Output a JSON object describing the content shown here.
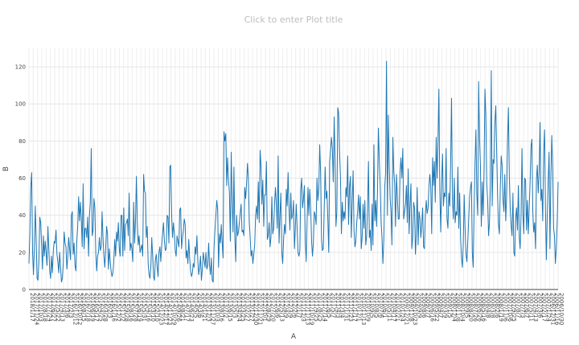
{
  "header": {
    "title_placeholder": "Click to enter Plot title"
  },
  "chart_data": {
    "type": "line",
    "title": "",
    "xlabel": "A",
    "ylabel": "B",
    "ylim": [
      0,
      130
    ],
    "yticks": [
      0,
      20,
      40,
      60,
      80,
      100,
      120
    ],
    "x_axis_reversed": true,
    "grid": true,
    "legend": "none",
    "line_color": "#1f77b4",
    "x_tick_labels": [
      "2018/1/17",
      "2017/11/24",
      "2017/10/3",
      "2017/8/18",
      "2017/7/24",
      "2017/6/27",
      "2017/5/22",
      "2017/4/13",
      "2017/3/6",
      "2017/2/3",
      "2016/12/12",
      "2016/10/12",
      "2016/8/15",
      "2016/7/18",
      "2016/6/19",
      "2016/5/17",
      "2016/4/25",
      "2016/3/28",
      "2016/2/3",
      "2016/1/16",
      "2015/12/2",
      "2015/11/2",
      "2015/9/28",
      "2015/8/16",
      "2015/7/28",
      "2015/6/19",
      "2015/5/31",
      "2015/4/16",
      "2015/3/10",
      "2015/2/10",
      "2014/12/23",
      "2014/12/17",
      "2014/11/23",
      "2014/10/29",
      "2014/9/26",
      "2014/8/21",
      "2014/7/17",
      "2014/6/23",
      "2014/5/5",
      "2014/3/6",
      "2014/1/21",
      "2013/12/3",
      "2013/11/27",
      "2013/10/3",
      "2013/8/16",
      "2013/7/2",
      "2013/6/15",
      "2013/5/3",
      "2013/4/24",
      "2013/3/25",
      "2013/2/27",
      "2013/1/27",
      "2012/12/30",
      "2012/11/21",
      "2012/10/1",
      "2012/8/29",
      "2012/7/20",
      "2012/6/6",
      "2012/5/13",
      "2012/4/9",
      "2012/3/9",
      "2012/2/6",
      "2012/1/7",
      "2011/12/3",
      "2011/11/13",
      "2011/10/19",
      "2011/9/25",
      "2011/8/25",
      "2011/7/14",
      "2011/6/5",
      "2011/5/7",
      "2011/4/3",
      "2011/3/4",
      "2011/1/31",
      "2011/1/23",
      "2011/1/17",
      "2010/12/1",
      "2010/11/13",
      "2010/10/9",
      "2010/9/5",
      "2010/8/5",
      "2010/7/6",
      "2010/6/1",
      "2010/5/11",
      "2010/4/17",
      "2010/2/21",
      "2010/1/24",
      "2009/12/21",
      "2009/11/8",
      "2009/10/23",
      "2009/9/9",
      "2009/8/6",
      "2009/7/7",
      "2009/6/16",
      "2009/5/22",
      "2009/4/7",
      "2009/3/9",
      "2009/1/5",
      "2008/12/4",
      "2008/11/8",
      "2008/10/4",
      "2008/9/5",
      "2008/8/20",
      "2008/7/26",
      "2008/6/26",
      "2008/5/16",
      "2008/4/8",
      "2008/3/8",
      "2008/2/6",
      "2008/1/19",
      "2007/11/6",
      "2007/10/6",
      "2007/9/25",
      "2007/8/7",
      "2007/7/3",
      "2007/6/7",
      "2007/5/11",
      "2007/4/13",
      "2007/3/6",
      "2007/2/17",
      "2007/1/24",
      "2006/12/31",
      "2006/11/16",
      "2006/10/30"
    ],
    "x_tick_labels_note_free": true,
    "series": [
      {
        "x_start": "2018/1/17",
        "x_end": "2006/10/30",
        "values": [
          14,
          30,
          55,
          63,
          20,
          8,
          22,
          45,
          27,
          6,
          5,
          15,
          39,
          36,
          24,
          11,
          29,
          18,
          26,
          20,
          13,
          34,
          22,
          10,
          6,
          18,
          9,
          21,
          26,
          25,
          32,
          19,
          15,
          9,
          20,
          12,
          4,
          6,
          14,
          31,
          25,
          23,
          11,
          18,
          28,
          22,
          16,
          40,
          42,
          19,
          25,
          13,
          10,
          26,
          34,
          50,
          37,
          47,
          38,
          23,
          57,
          22,
          33,
          33,
          28,
          39,
          18,
          40,
          47,
          76,
          29,
          32,
          49,
          44,
          20,
          10,
          18,
          20,
          28,
          21,
          23,
          42,
          28,
          18,
          12,
          22,
          34,
          30,
          11,
          22,
          15,
          10,
          7,
          9,
          16,
          27,
          18,
          31,
          26,
          36,
          22,
          18,
          40,
          40,
          18,
          44,
          21,
          35,
          36,
          38,
          29,
          52,
          21,
          25,
          22,
          15,
          47,
          25,
          37,
          61,
          36,
          24,
          29,
          20,
          22,
          24,
          18,
          62,
          53,
          52,
          28,
          34,
          14,
          8,
          6,
          12,
          28,
          18,
          7,
          5,
          16,
          19,
          12,
          7,
          20,
          23,
          15,
          24,
          30,
          36,
          26,
          21,
          22,
          40,
          39,
          25,
          66,
          67,
          41,
          28,
          36,
          30,
          21,
          18,
          29,
          26,
          23,
          43,
          44,
          22,
          28,
          32,
          38,
          35,
          17,
          21,
          14,
          27,
          17,
          10,
          7,
          9,
          14,
          12,
          23,
          19,
          29,
          16,
          8,
          12,
          18,
          5,
          11,
          20,
          16,
          12,
          20,
          11,
          13,
          25,
          13,
          8,
          17,
          5,
          4,
          23,
          32,
          40,
          48,
          43,
          12,
          30,
          25,
          35,
          25,
          17,
          85,
          80,
          84,
          56,
          71,
          59,
          52,
          26,
          74,
          49,
          31,
          66,
          28,
          15,
          40,
          29,
          31,
          36,
          41,
          46,
          31,
          32,
          29,
          55,
          49,
          57,
          68,
          60,
          37,
          28,
          18,
          21,
          14,
          19,
          24,
          40,
          45,
          38,
          58,
          36,
          75,
          66,
          46,
          59,
          34,
          51,
          51,
          69,
          27,
          29,
          36,
          23,
          28,
          50,
          30,
          33,
          46,
          55,
          46,
          33,
          72,
          25,
          40,
          52,
          20,
          14,
          27,
          35,
          30,
          54,
          45,
          63,
          44,
          32,
          52,
          38,
          40,
          48,
          22,
          33,
          46,
          33,
          20,
          18,
          21,
          54,
          60,
          44,
          49,
          56,
          27,
          15,
          36,
          55,
          40,
          54,
          44,
          26,
          18,
          25,
          42,
          40,
          35,
          60,
          48,
          54,
          78,
          63,
          27,
          21,
          22,
          44,
          66,
          49,
          53,
          38,
          20,
          69,
          75,
          82,
          76,
          58,
          93,
          71,
          34,
          42,
          98,
          95,
          74,
          61,
          30,
          47,
          37,
          42,
          38,
          55,
          50,
          72,
          35,
          55,
          61,
          28,
          47,
          64,
          32,
          23,
          26,
          36,
          42,
          51,
          38,
          50,
          22,
          28,
          46,
          33,
          48,
          24,
          29,
          44,
          69,
          28,
          32,
          21,
          46,
          24,
          78,
          37,
          48,
          34,
          53,
          87,
          70,
          56,
          36,
          28,
          14,
          27,
          55,
          63,
          123,
          40,
          94,
          67,
          49,
          42,
          24,
          82,
          64,
          57,
          34,
          62,
          50,
          38,
          38,
          63,
          71,
          60,
          76,
          38,
          42,
          46,
          56,
          36,
          65,
          30,
          45,
          57,
          22,
          28,
          47,
          44,
          19,
          30,
          55,
          24,
          42,
          38,
          28,
          35,
          44,
          23,
          22,
          40,
          48,
          41,
          44,
          56,
          62,
          55,
          30,
          71,
          56,
          69,
          47,
          82,
          60,
          80,
          108,
          54,
          31,
          57,
          73,
          45,
          52,
          50,
          76,
          38,
          33,
          52,
          45,
          68,
          103,
          49,
          38,
          60,
          36,
          42,
          40,
          66,
          33,
          52,
          28,
          17,
          12,
          25,
          51,
          33,
          19,
          15,
          26,
          38,
          50,
          55,
          58,
          20,
          12,
          44,
          68,
          86,
          52,
          40,
          112,
          82,
          67,
          34,
          58,
          40,
          64,
          108,
          94,
          57,
          48,
          29,
          36,
          56,
          118,
          45,
          70,
          68,
          90,
          99,
          74,
          50,
          35,
          30,
          55,
          72,
          67,
          49,
          42,
          62,
          37,
          50,
          80,
          98,
          60,
          43,
          35,
          29,
          52,
          20,
          18,
          38,
          44,
          32,
          56,
          28,
          22,
          40,
          76,
          41,
          30,
          60,
          59,
          32,
          48,
          30,
          44,
          58,
          77,
          81,
          42,
          31,
          36,
          22,
          59,
          67,
          52,
          63,
          90,
          48,
          54,
          37,
          74,
          86,
          44,
          16,
          40,
          58,
          74,
          22,
          60,
          83,
          66,
          33,
          29,
          14,
          22,
          36,
          58
        ]
      }
    ]
  }
}
